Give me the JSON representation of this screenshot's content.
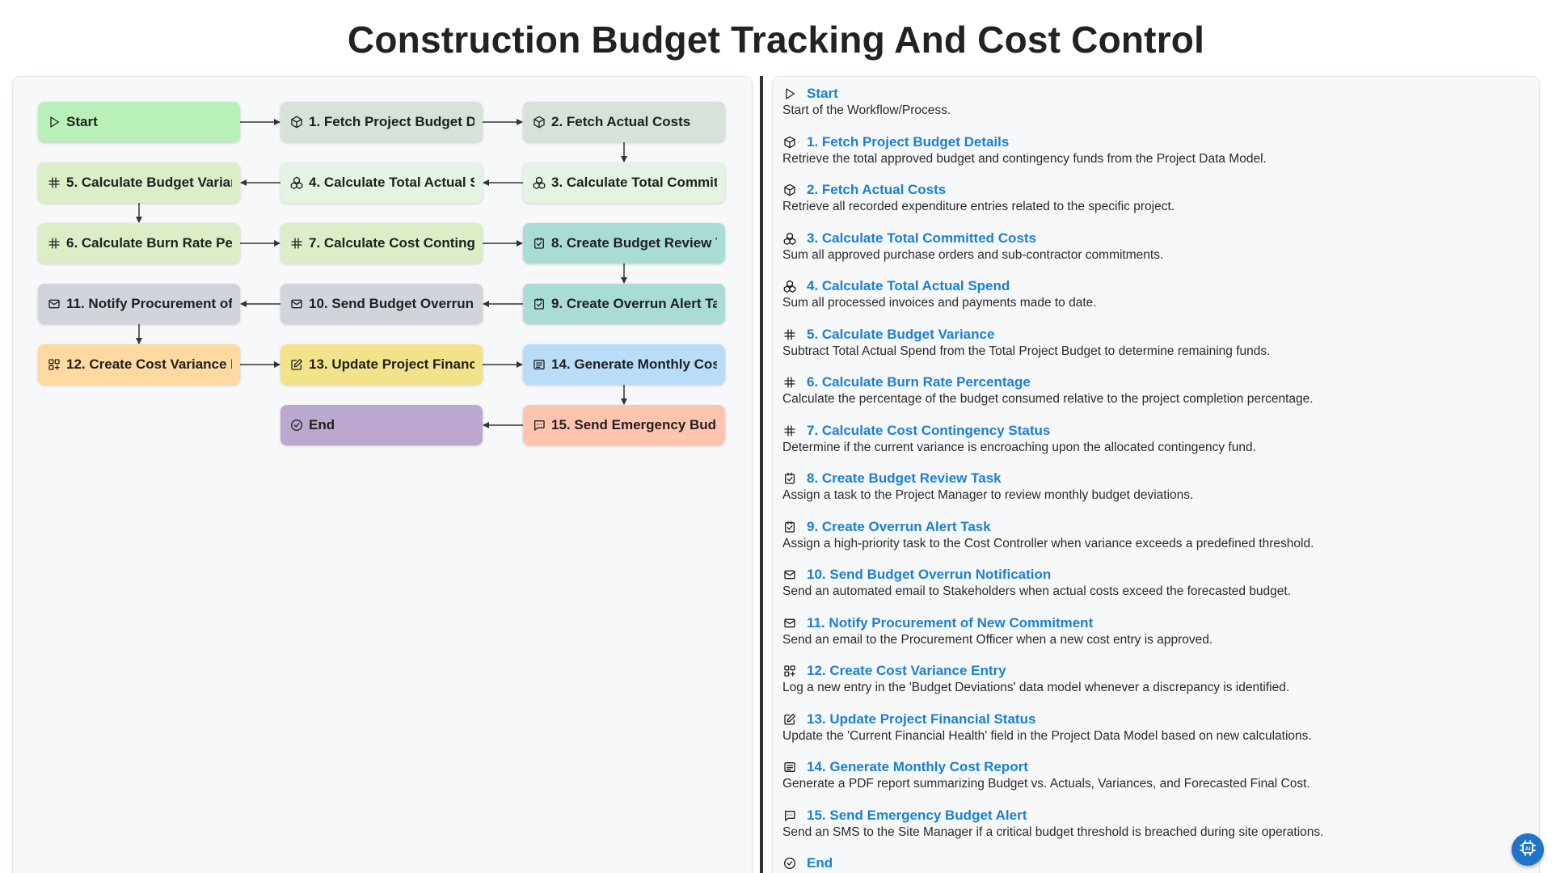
{
  "page": {
    "title": "Construction Budget Tracking And Cost Control"
  },
  "colors": {
    "start": "#b8f0b8",
    "fetch": "#d7e2d8",
    "total_spend": "#e4f4e4",
    "calc": "#dceec8",
    "task": "#a8dcd5",
    "notify": "#cfd5da",
    "data_entry": "#ffd9a0",
    "update": "#f2e38a",
    "report": "#b9dcf7",
    "sms": "#ffc4b0",
    "end": "#bca7cf",
    "link": "#1a7fd6",
    "fab": "#1e74c6"
  },
  "diagram": {
    "nodes": [
      {
        "id": "start",
        "label": "Start",
        "icon": "play-icon",
        "color_key": "start"
      },
      {
        "id": "n1",
        "label": "1. Fetch Project Budget Details",
        "icon": "cube-icon",
        "color_key": "fetch"
      },
      {
        "id": "n2",
        "label": "2. Fetch Actual Costs",
        "icon": "cube-icon",
        "color_key": "fetch"
      },
      {
        "id": "n3",
        "label": "3. Calculate Total Committed Costs",
        "icon": "cubes-icon",
        "color_key": "total_spend"
      },
      {
        "id": "n4",
        "label": "4. Calculate Total Actual Spend",
        "icon": "cubes-icon",
        "color_key": "total_spend"
      },
      {
        "id": "n5",
        "label": "5. Calculate Budget Variance",
        "icon": "hash-icon",
        "color_key": "calc"
      },
      {
        "id": "n6",
        "label": "6. Calculate Burn Rate Percentage",
        "icon": "hash-icon",
        "color_key": "calc"
      },
      {
        "id": "n7",
        "label": "7. Calculate Cost Contingency Status",
        "icon": "hash-icon",
        "color_key": "calc"
      },
      {
        "id": "n8",
        "label": "8. Create Budget Review Task",
        "icon": "task-check-icon",
        "color_key": "task"
      },
      {
        "id": "n9",
        "label": "9. Create Overrun Alert Task",
        "icon": "task-check-icon",
        "color_key": "task"
      },
      {
        "id": "n10",
        "label": "10. Send Budget Overrun Notification",
        "icon": "mail-icon",
        "color_key": "notify"
      },
      {
        "id": "n11",
        "label": "11. Notify Procurement of New Commitment",
        "icon": "mail-icon",
        "color_key": "notify"
      },
      {
        "id": "n12",
        "label": "12. Create Cost Variance Entry",
        "icon": "grid-plus-icon",
        "color_key": "data_entry"
      },
      {
        "id": "n13",
        "label": "13. Update Project Financial Status",
        "icon": "edit-icon",
        "color_key": "update"
      },
      {
        "id": "n14",
        "label": "14. Generate Monthly Cost Report",
        "icon": "report-icon",
        "color_key": "report"
      },
      {
        "id": "n15",
        "label": "15. Send Emergency Budget Alert",
        "icon": "sms-icon",
        "color_key": "sms"
      },
      {
        "id": "end",
        "label": "End",
        "icon": "check-circle-icon",
        "color_key": "end"
      }
    ],
    "edges": [
      [
        "start",
        "n1"
      ],
      [
        "n1",
        "n2"
      ],
      [
        "n2",
        "n3"
      ],
      [
        "n3",
        "n4"
      ],
      [
        "n4",
        "n5"
      ],
      [
        "n5",
        "n6"
      ],
      [
        "n6",
        "n7"
      ],
      [
        "n7",
        "n8"
      ],
      [
        "n8",
        "n9"
      ],
      [
        "n9",
        "n10"
      ],
      [
        "n10",
        "n11"
      ],
      [
        "n11",
        "n12"
      ],
      [
        "n12",
        "n13"
      ],
      [
        "n13",
        "n14"
      ],
      [
        "n14",
        "n15"
      ],
      [
        "n15",
        "end"
      ]
    ]
  },
  "steps": [
    {
      "title": "Start",
      "icon": "play-icon",
      "description": "Start of the Workflow/Process."
    },
    {
      "title": "1. Fetch Project Budget Details",
      "icon": "cube-icon",
      "description": "Retrieve the total approved budget and contingency funds from the Project Data Model."
    },
    {
      "title": "2. Fetch Actual Costs",
      "icon": "cube-icon",
      "description": "Retrieve all recorded expenditure entries related to the specific project."
    },
    {
      "title": "3. Calculate Total Committed Costs",
      "icon": "cubes-icon",
      "description": "Sum all approved purchase orders and sub-contractor commitments."
    },
    {
      "title": "4. Calculate Total Actual Spend",
      "icon": "cubes-icon",
      "description": "Sum all processed invoices and payments made to date."
    },
    {
      "title": "5. Calculate Budget Variance",
      "icon": "hash-icon",
      "description": "Subtract Total Actual Spend from the Total Project Budget to determine remaining funds."
    },
    {
      "title": "6. Calculate Burn Rate Percentage",
      "icon": "hash-icon",
      "description": "Calculate the percentage of the budget consumed relative to the project completion percentage."
    },
    {
      "title": "7. Calculate Cost Contingency Status",
      "icon": "hash-icon",
      "description": "Determine if the current variance is encroaching upon the allocated contingency fund."
    },
    {
      "title": "8. Create Budget Review Task",
      "icon": "task-check-icon",
      "description": "Assign a task to the Project Manager to review monthly budget deviations."
    },
    {
      "title": "9. Create Overrun Alert Task",
      "icon": "task-check-icon",
      "description": "Assign a high-priority task to the Cost Controller when variance exceeds a predefined threshold."
    },
    {
      "title": "10. Send Budget Overrun Notification",
      "icon": "mail-icon",
      "description": "Send an automated email to Stakeholders when actual costs exceed the forecasted budget."
    },
    {
      "title": "11. Notify Procurement of New Commitment",
      "icon": "mail-icon",
      "description": "Send an email to the Procurement Officer when a new cost entry is approved."
    },
    {
      "title": "12. Create Cost Variance Entry",
      "icon": "grid-plus-icon",
      "description": "Log a new entry in the 'Budget Deviations' data model whenever a discrepancy is identified."
    },
    {
      "title": "13. Update Project Financial Status",
      "icon": "edit-icon",
      "description": "Update the 'Current Financial Health' field in the Project Data Model based on new calculations."
    },
    {
      "title": "14. Generate Monthly Cost Report",
      "icon": "report-icon",
      "description": "Generate a PDF report summarizing Budget vs. Actuals, Variances, and Forecasted Final Cost."
    },
    {
      "title": "15. Send Emergency Budget Alert",
      "icon": "sms-icon",
      "description": "Send an SMS to the Site Manager if a critical budget threshold is breached during site operations."
    },
    {
      "title": "End",
      "icon": "check-circle-icon",
      "description": ""
    }
  ],
  "fab": {
    "icon": "ai-chip-icon"
  }
}
